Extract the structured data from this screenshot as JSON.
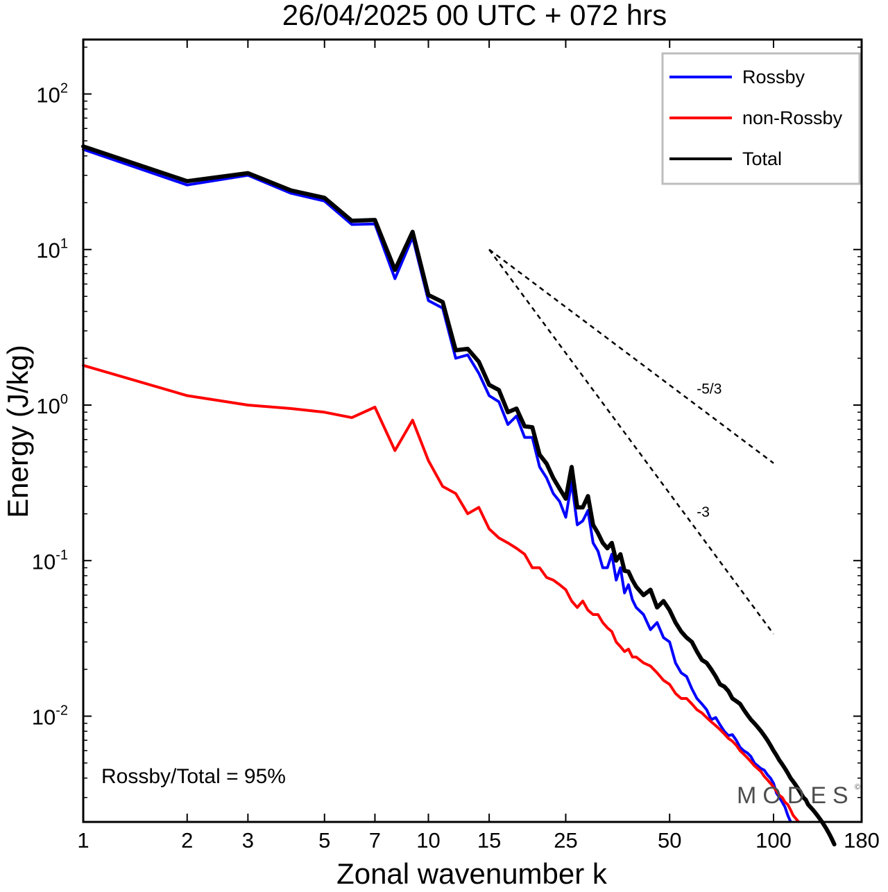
{
  "chart_data": {
    "type": "line",
    "title": "26/04/2025  00 UTC  + 072 hrs",
    "xlabel": "Zonal wavenumber k",
    "ylabel": "Energy (J/kg)",
    "x_scale": "log",
    "y_scale": "log",
    "xlim": [
      1,
      180
    ],
    "ylim": [
      0.002,
      200
    ],
    "x_ticks": [
      {
        "value": 1,
        "label": "1"
      },
      {
        "value": 2,
        "label": "2"
      },
      {
        "value": 3,
        "label": "3"
      },
      {
        "value": 5,
        "label": "5"
      },
      {
        "value": 7,
        "label": "7"
      },
      {
        "value": 10,
        "label": "10"
      },
      {
        "value": 15,
        "label": "15"
      },
      {
        "value": 25,
        "label": "25"
      },
      {
        "value": 50,
        "label": "50"
      },
      {
        "value": 100,
        "label": "100"
      },
      {
        "value": 180,
        "label": "180"
      }
    ],
    "y_ticks": [
      {
        "value": 100,
        "base": "10",
        "exp": "2"
      },
      {
        "value": 10,
        "base": "10",
        "exp": "1"
      },
      {
        "value": 1,
        "base": "10",
        "exp": "0"
      },
      {
        "value": 0.1,
        "base": "10",
        "exp": "-1"
      },
      {
        "value": 0.01,
        "base": "10",
        "exp": "-2"
      }
    ],
    "grid": false,
    "legend_position": "top-right",
    "series": [
      {
        "name": "Rossby",
        "color": "#0000ff",
        "x": [
          1,
          2,
          3,
          4,
          5,
          6,
          7,
          8,
          9,
          10,
          11,
          12,
          13,
          14,
          15,
          16,
          17,
          18,
          19,
          20,
          21,
          22,
          23,
          24,
          25,
          26,
          27,
          28,
          29,
          30,
          31,
          32,
          33,
          34,
          35,
          36,
          37,
          38,
          39,
          40,
          42,
          44,
          46,
          48,
          50,
          52,
          54,
          56,
          58,
          60,
          62,
          64,
          66,
          68,
          70,
          72,
          74,
          76,
          78,
          80,
          82,
          84,
          86,
          88,
          90,
          92,
          94,
          96,
          98,
          100,
          102,
          104,
          106,
          108,
          110,
          112
        ],
        "y": [
          44,
          26,
          30,
          23,
          20.5,
          14.5,
          14.6,
          6.5,
          12,
          4.7,
          4.2,
          2.0,
          2.1,
          1.6,
          1.15,
          1.05,
          0.75,
          0.85,
          0.62,
          0.62,
          0.4,
          0.34,
          0.27,
          0.24,
          0.19,
          0.32,
          0.17,
          0.18,
          0.21,
          0.13,
          0.115,
          0.09,
          0.09,
          0.11,
          0.075,
          0.09,
          0.062,
          0.07,
          0.056,
          0.05,
          0.045,
          0.036,
          0.04,
          0.032,
          0.03,
          0.022,
          0.019,
          0.018,
          0.015,
          0.013,
          0.012,
          0.011,
          0.0095,
          0.0098,
          0.0088,
          0.008,
          0.0075,
          0.0076,
          0.007,
          0.0063,
          0.006,
          0.0058,
          0.0055,
          0.005,
          0.0048,
          0.0046,
          0.0045,
          0.0042,
          0.004,
          0.0037,
          0.0032,
          0.003,
          0.0028,
          0.0026,
          0.0023,
          0.0021
        ]
      },
      {
        "name": "non-Rossby",
        "color": "#ff0000",
        "x": [
          1,
          2,
          3,
          4,
          5,
          6,
          7,
          8,
          9,
          10,
          11,
          12,
          13,
          14,
          15,
          16,
          17,
          18,
          19,
          20,
          21,
          22,
          23,
          24,
          25,
          26,
          27,
          28,
          29,
          30,
          31,
          32,
          33,
          34,
          35,
          36,
          37,
          38,
          39,
          40,
          42,
          44,
          46,
          48,
          50,
          52,
          54,
          56,
          58,
          60,
          62,
          64,
          66,
          68,
          70,
          72,
          74,
          76,
          78,
          80,
          82,
          84,
          86,
          88,
          90,
          92,
          94,
          96,
          98,
          100,
          102,
          104,
          106,
          108,
          110,
          112,
          114,
          116,
          118
        ],
        "y": [
          1.8,
          1.15,
          1.0,
          0.95,
          0.9,
          0.83,
          0.97,
          0.51,
          0.8,
          0.44,
          0.3,
          0.27,
          0.2,
          0.22,
          0.16,
          0.14,
          0.13,
          0.12,
          0.11,
          0.09,
          0.09,
          0.078,
          0.075,
          0.07,
          0.065,
          0.055,
          0.05,
          0.055,
          0.048,
          0.045,
          0.045,
          0.04,
          0.037,
          0.035,
          0.03,
          0.028,
          0.026,
          0.027,
          0.024,
          0.024,
          0.022,
          0.021,
          0.019,
          0.017,
          0.016,
          0.014,
          0.013,
          0.013,
          0.012,
          0.011,
          0.0105,
          0.0098,
          0.0092,
          0.0087,
          0.0082,
          0.0077,
          0.0072,
          0.0069,
          0.0065,
          0.006,
          0.0057,
          0.0054,
          0.0051,
          0.0048,
          0.0046,
          0.0044,
          0.0041,
          0.0039,
          0.0037,
          0.0035,
          0.0033,
          0.0031,
          0.003,
          0.0028,
          0.0027,
          0.0025,
          0.0023,
          0.0022,
          0.0021
        ]
      },
      {
        "name": "Total",
        "color": "#000000",
        "x": [
          1,
          2,
          3,
          4,
          5,
          6,
          7,
          8,
          9,
          10,
          11,
          12,
          13,
          14,
          15,
          16,
          17,
          18,
          19,
          20,
          21,
          22,
          23,
          24,
          25,
          26,
          27,
          28,
          29,
          30,
          31,
          32,
          33,
          34,
          35,
          36,
          37,
          38,
          39,
          40,
          42,
          44,
          46,
          48,
          50,
          52,
          54,
          56,
          58,
          60,
          62,
          64,
          66,
          68,
          70,
          72,
          74,
          76,
          78,
          80,
          82,
          84,
          86,
          88,
          90,
          92,
          94,
          96,
          98,
          100,
          102,
          104,
          106,
          108,
          110,
          112,
          114,
          116,
          118,
          120,
          122,
          124,
          126,
          128,
          130,
          132,
          134,
          136,
          138,
          140,
          142,
          144,
          146,
          148,
          150
        ],
        "y": [
          46,
          27.5,
          31,
          24,
          21.5,
          15.3,
          15.5,
          7.4,
          13,
          5.1,
          4.6,
          2.25,
          2.3,
          1.9,
          1.35,
          1.25,
          0.9,
          0.95,
          0.73,
          0.72,
          0.48,
          0.42,
          0.34,
          0.29,
          0.25,
          0.4,
          0.22,
          0.22,
          0.26,
          0.17,
          0.15,
          0.13,
          0.12,
          0.13,
          0.1,
          0.11,
          0.086,
          0.085,
          0.075,
          0.068,
          0.06,
          0.065,
          0.05,
          0.055,
          0.048,
          0.04,
          0.035,
          0.032,
          0.03,
          0.026,
          0.023,
          0.022,
          0.02,
          0.018,
          0.016,
          0.0155,
          0.0145,
          0.013,
          0.0125,
          0.012,
          0.011,
          0.0102,
          0.0095,
          0.009,
          0.0085,
          0.008,
          0.0075,
          0.007,
          0.0065,
          0.006,
          0.0056,
          0.0052,
          0.0049,
          0.0046,
          0.0043,
          0.004,
          0.0038,
          0.0036,
          0.0034,
          0.0032,
          0.003,
          0.0029,
          0.0027,
          0.0026,
          0.0025,
          0.0024,
          0.0023,
          0.0022,
          0.0021,
          0.002,
          0.0019,
          0.0018,
          0.0017,
          0.0016,
          0.0015
        ]
      }
    ],
    "reference_lines": [
      {
        "label": "-5/3",
        "slope": -1.6667,
        "x_start": 15,
        "y_start": 10,
        "x_end": 100
      },
      {
        "label": "-3",
        "slope": -3,
        "x_start": 15,
        "y_start": 10,
        "x_end": 100
      }
    ],
    "annotations": {
      "ratio_text": "Rossby/Total = 95%",
      "watermark": "MODES",
      "watermark_mark": "©"
    }
  }
}
